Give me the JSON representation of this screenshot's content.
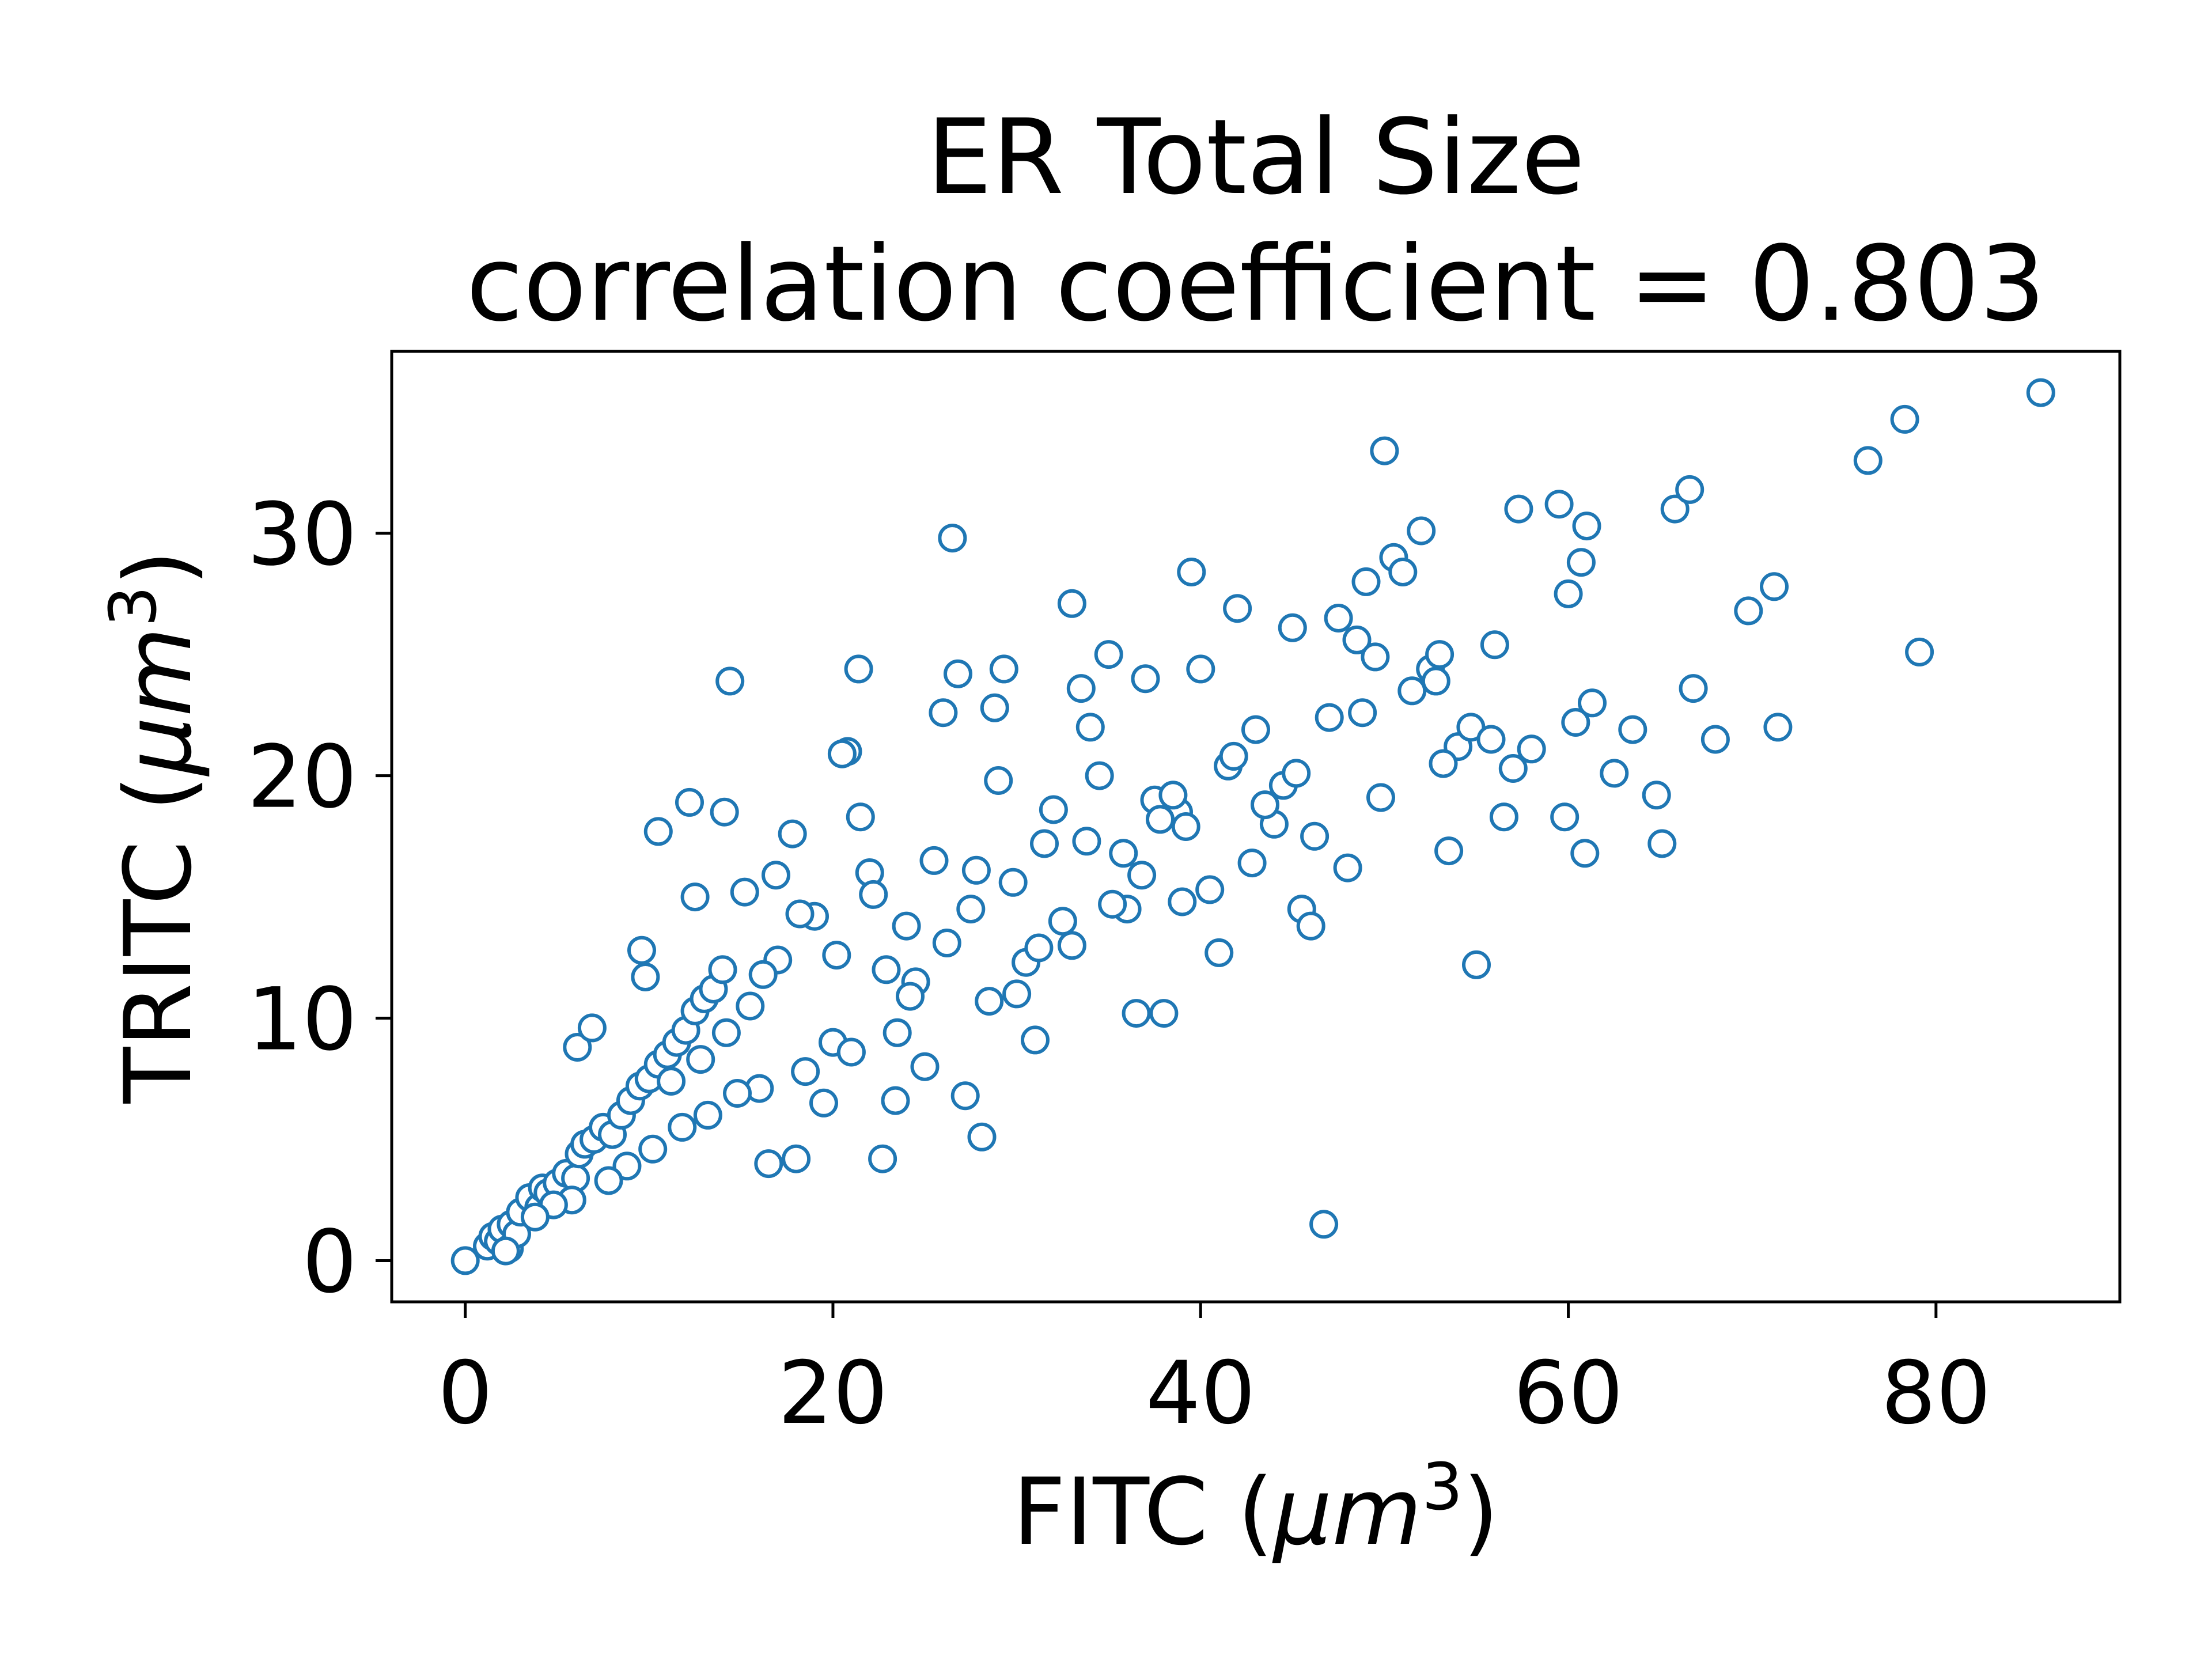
{
  "chart_data": {
    "type": "scatter",
    "title": "ER Total Size",
    "subtitle": "correlation coefficient = 0.803",
    "xlabel": "FITC (μm³)",
    "ylabel": "TRITC (μm³)",
    "xlabel_parts": {
      "prefix": "FITC (",
      "var": "μm",
      "sup": "3",
      "suffix": ")"
    },
    "ylabel_parts": {
      "prefix": "TRITC (",
      "var": "μm",
      "sup": "3",
      "suffix": ")"
    },
    "xlim": [
      -4,
      90
    ],
    "ylim": [
      -1.7,
      37.5
    ],
    "xticks": [
      0,
      20,
      40,
      60,
      80
    ],
    "yticks": [
      0,
      10,
      20,
      30
    ],
    "xtick_labels": [
      "0",
      "20",
      "40",
      "60",
      "80"
    ],
    "ytick_labels": [
      "0",
      "10",
      "20",
      "30"
    ],
    "marker": "hollow-circle",
    "color": "#1f77b4",
    "grid": false,
    "legend": "none",
    "series": [
      {
        "x": [
          0.0,
          1.2,
          1.5,
          1.8,
          2.0,
          2.4,
          2.5,
          2.8,
          3.0,
          3.5,
          4.0,
          4.2,
          4.5,
          5.0,
          5.5,
          6.0,
          6.2,
          6.5,
          7.0,
          7.5,
          8.0,
          8.5,
          9.0,
          9.5,
          10.0,
          10.5,
          11.0,
          11.5,
          12.0,
          12.5,
          13.0,
          13.5,
          14.0,
          6.1,
          6.9,
          9.6,
          9.8,
          10.5,
          12.2,
          12.5,
          14.1,
          14.4,
          15.2,
          16.5,
          17.8,
          18.0,
          16.9,
          19.5,
          20.0,
          20.8,
          21.4,
          21.5,
          20.5,
          22.7,
          22.9,
          23.4,
          25.0,
          26.0,
          26.5,
          26.8,
          27.2,
          28.1,
          28.8,
          29.3,
          30.0,
          31.0,
          32.5,
          33.0,
          33.5,
          34.0,
          35.0,
          35.8,
          36.5,
          37.0,
          37.5,
          38.0,
          38.8,
          39.5,
          40.0,
          40.5,
          41.0,
          42.0,
          43.0,
          44.0,
          45.0,
          45.5,
          46.0,
          46.7,
          47.0,
          47.5,
          48.0,
          48.5,
          49.0,
          49.5,
          50.0,
          50.5,
          51.0,
          51.5,
          52.0,
          52.5,
          53.0,
          53.5,
          54.0,
          54.7,
          55.0,
          56.0,
          56.5,
          57.0,
          57.3,
          58.0,
          59.5,
          59.8,
          60.0,
          60.4,
          60.7,
          60.9,
          61.0,
          61.3,
          62.5,
          63.5,
          64.8,
          65.1,
          65.8,
          66.6,
          66.8,
          68.0,
          69.8,
          71.2,
          71.4,
          76.3,
          78.3,
          79.1,
          85.7,
          33.0,
          36.0,
          34.5,
          31.5,
          27.5,
          24.0,
          22.0,
          19.0,
          17.0,
          15.5,
          25.5,
          29.0,
          32.0,
          38.5,
          41.5,
          43.5,
          44.5,
          39.0,
          36.8,
          30.5,
          28.5,
          23.5,
          21.0,
          18.5,
          16.0,
          14.8,
          13.2,
          11.8,
          10.2,
          8.8,
          7.8,
          5.8,
          4.8,
          3.8,
          2.2,
          26.2,
          29.8,
          33.8,
          37.8,
          41.8,
          45.2,
          48.8,
          52.8,
          55.8,
          24.5,
          27.8,
          31.2,
          35.2,
          39.2,
          42.8,
          46.2,
          49.8,
          53.2,
          18.2,
          20.2,
          22.2,
          24.2,
          16.2,
          14.2,
          12.8,
          11.2
        ],
        "y": [
          0.0,
          0.6,
          1.0,
          0.8,
          1.3,
          0.5,
          1.5,
          1.1,
          2.0,
          2.6,
          2.2,
          3.0,
          2.8,
          3.2,
          3.6,
          3.4,
          4.4,
          4.8,
          5.0,
          5.5,
          5.2,
          6.0,
          6.6,
          7.2,
          7.5,
          8.1,
          8.5,
          9.0,
          9.5,
          10.3,
          10.8,
          11.2,
          12.0,
          8.8,
          9.6,
          12.8,
          11.7,
          17.7,
          18.9,
          15.0,
          18.5,
          23.9,
          15.2,
          4.0,
          17.6,
          4.2,
          15.9,
          6.5,
          9.0,
          21.0,
          24.4,
          18.3,
          20.9,
          4.2,
          12.0,
          6.6,
          8.0,
          22.6,
          29.8,
          24.2,
          6.8,
          5.1,
          22.8,
          24.4,
          11.0,
          9.1,
          14.0,
          27.1,
          23.6,
          22.0,
          25.0,
          16.8,
          10.2,
          24.0,
          19.0,
          10.2,
          18.5,
          28.4,
          24.4,
          15.3,
          12.7,
          26.9,
          21.9,
          18.0,
          26.1,
          14.5,
          13.8,
          1.5,
          22.4,
          26.5,
          16.2,
          25.6,
          28.0,
          24.9,
          33.4,
          29.0,
          28.4,
          23.5,
          30.1,
          24.4,
          25.0,
          16.9,
          21.2,
          22.0,
          12.2,
          25.4,
          18.3,
          20.3,
          31.0,
          21.1,
          31.2,
          18.3,
          27.5,
          22.2,
          28.8,
          16.8,
          30.3,
          23.0,
          20.1,
          21.9,
          19.2,
          17.2,
          31.0,
          31.8,
          23.6,
          21.5,
          26.8,
          27.8,
          22.0,
          33.0,
          34.7,
          25.1,
          35.8,
          13.0,
          14.5,
          20.0,
          17.2,
          14.5,
          13.8,
          16.0,
          14.2,
          12.4,
          10.5,
          16.5,
          19.8,
          18.6,
          19.2,
          20.4,
          18.8,
          19.6,
          14.8,
          15.9,
          12.3,
          10.7,
          9.4,
          8.6,
          7.8,
          7.1,
          6.9,
          6.0,
          5.5,
          4.6,
          3.9,
          3.3,
          2.5,
          2.3,
          1.8,
          0.4,
          13.1,
          15.6,
          17.3,
          18.2,
          20.8,
          20.1,
          22.6,
          23.9,
          21.5,
          11.5,
          16.1,
          12.9,
          14.7,
          17.9,
          16.4,
          17.5,
          19.1,
          20.5,
          14.3,
          12.6,
          15.1,
          10.9,
          11.8,
          9.4,
          8.3,
          7.4
        ]
      }
    ]
  }
}
